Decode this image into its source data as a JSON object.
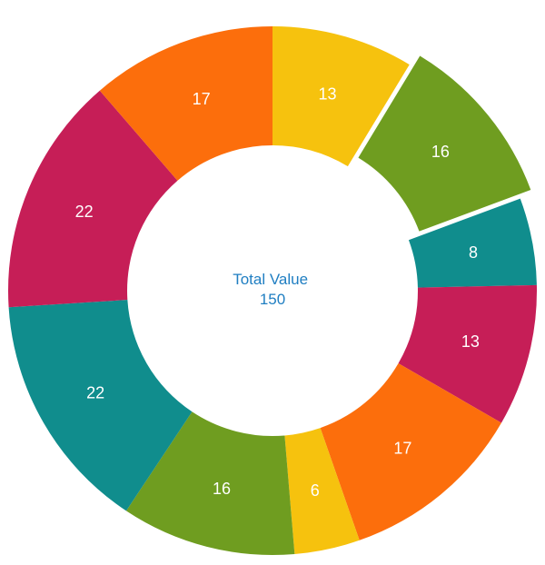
{
  "page": {
    "background_color": "#ffffff"
  },
  "chart_data": {
    "type": "pie",
    "variant": "donut",
    "values": [
      13,
      16,
      8,
      13,
      17,
      6,
      16,
      22,
      22,
      17
    ],
    "labels": [
      "13",
      "16",
      "8",
      "13",
      "17",
      "6",
      "16",
      "22",
      "22",
      "17"
    ],
    "colors": [
      "#F6C20E",
      "#6F9D20",
      "#108D8D",
      "#C61E57",
      "#FC6E0C",
      "#F6C20E",
      "#6F9D20",
      "#108D8D",
      "#C61E57",
      "#FC6E0C"
    ],
    "palette": [
      "#F6C20E",
      "#6F9D20",
      "#108D8D",
      "#C61E57",
      "#FC6E0C"
    ],
    "total": 150,
    "exploded_slice_index": 1,
    "start_angle_deg": 0,
    "direction": "clockwise",
    "inner_radius_ratio": 0.55,
    "data_label_color": "#ffffff",
    "legend": "none",
    "center_text": {
      "line1": "Total Value",
      "line2": "150",
      "color": "#1F7EC2"
    }
  }
}
